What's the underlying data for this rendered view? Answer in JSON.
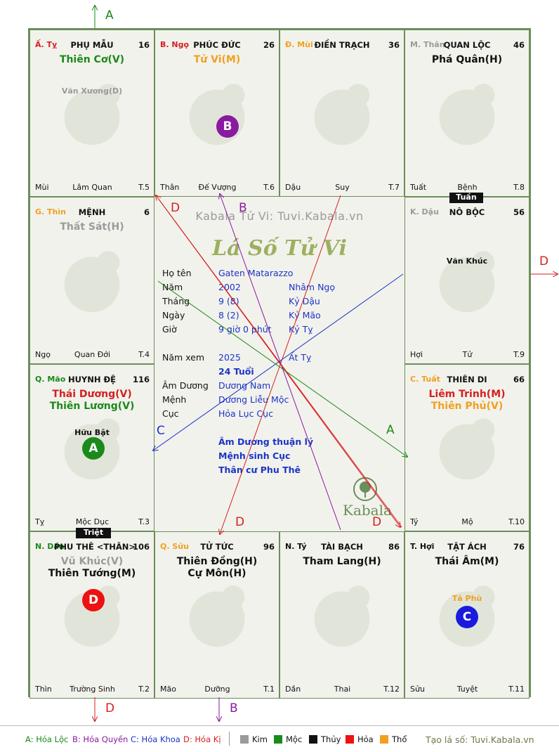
{
  "cells": [
    {
      "id": "ty",
      "tag": "Ấ. Tỵ",
      "tag_color": "#d42020",
      "name": "PHỤ MẪU",
      "num": "16",
      "major": [
        "Thiên Cơ(V)"
      ],
      "major_colors": [
        "#1a8a1a"
      ],
      "minor": [
        "Văn Xương(D)"
      ],
      "minor_colors": [
        "#9a9a9a"
      ],
      "minor_top": 80,
      "bottom_left": "Mùi",
      "bottom_center": "Lâm Quan",
      "bottom_right": "T.5"
    },
    {
      "id": "ngo",
      "tag": "B. Ngọ",
      "tag_color": "#d42020",
      "name": "PHÚC ĐỨC",
      "num": "26",
      "major": [
        "Tử Vi(M)"
      ],
      "major_colors": [
        "#f0a020"
      ],
      "minor": [],
      "minor_colors": [],
      "minor_top": 80,
      "bottom_left": "Thân",
      "bottom_center": "Đế Vượng",
      "bottom_right": "T.6"
    },
    {
      "id": "mui",
      "tag": "Đ. Mùi",
      "tag_color": "#f0a020",
      "name": "ĐIỀN TRẠCH",
      "num": "36",
      "major": [],
      "major_colors": [],
      "minor": [],
      "minor_colors": [],
      "minor_top": 80,
      "bottom_left": "Dậu",
      "bottom_center": "Suy",
      "bottom_right": "T.7"
    },
    {
      "id": "than",
      "tag": "M. Thân",
      "tag_color": "#9a9a9a",
      "name": "QUAN LỘC",
      "num": "46",
      "major": [
        "Phá Quân(H)"
      ],
      "major_colors": [
        "#111111"
      ],
      "minor": [],
      "minor_colors": [],
      "minor_top": 80,
      "bottom_left": "Tuất",
      "bottom_center": "Bệnh",
      "bottom_right": "T.8"
    },
    {
      "id": "thin",
      "tag": "G. Thìn",
      "tag_color": "#f0a020",
      "name": "MỆNH",
      "num": "6",
      "major": [
        "Thất Sát(H)"
      ],
      "major_colors": [
        "#9a9a9a"
      ],
      "minor": [],
      "minor_colors": [],
      "minor_top": 80,
      "bottom_left": "Ngọ",
      "bottom_center": "Quan Đới",
      "bottom_right": "T.4"
    },
    {
      "id": "dau",
      "tag": "K. Dậu",
      "tag_color": "#9a9a9a",
      "name": "NÔ BỘC",
      "num": "56",
      "major": [],
      "major_colors": [],
      "minor": [
        "Văn Khúc"
      ],
      "minor_colors": [
        "#111111"
      ],
      "minor_top": 84,
      "bottom_left": "Hợi",
      "bottom_center": "Tử",
      "bottom_right": "T.9"
    },
    {
      "id": "mao",
      "tag": "Q. Mão",
      "tag_color": "#1a8a1a",
      "name": "HUYNH ĐỆ",
      "num": "116",
      "major": [
        "Thái Dương(V)",
        "Thiên Lương(V)"
      ],
      "major_colors": [
        "#d42020",
        "#1a8a1a"
      ],
      "minor": [
        "Hữu Bật"
      ],
      "minor_colors": [
        "#111111"
      ],
      "minor_top": 82,
      "bottom_left": "Tỵ",
      "bottom_center": "Mộc Dục",
      "bottom_right": "T.3"
    },
    {
      "id": "tuat",
      "tag": "C. Tuất",
      "tag_color": "#f0a020",
      "name": "THIÊN DI",
      "num": "66",
      "major": [
        "Liêm Trinh(M)",
        "Thiên Phủ(V)"
      ],
      "major_colors": [
        "#d42020",
        "#f0a020"
      ],
      "minor": [],
      "minor_colors": [],
      "minor_top": 82,
      "bottom_left": "Tý",
      "bottom_center": "Mộ",
      "bottom_right": "T.10"
    },
    {
      "id": "dan",
      "tag": "N. Dần",
      "tag_color": "#1a8a1a",
      "name": "PHU THÊ <THÂN>",
      "num": "106",
      "major": [
        "Vũ Khúc(V)",
        "Thiên Tướng(M)"
      ],
      "major_colors": [
        "#9a9a9a",
        "#111111"
      ],
      "minor": [],
      "minor_colors": [],
      "minor_top": 82,
      "bottom_left": "Thìn",
      "bottom_center": "Trường Sinh",
      "bottom_right": "T.2"
    },
    {
      "id": "suu",
      "tag": "Q. Sửu",
      "tag_color": "#f0a020",
      "name": "TỬ TỨC",
      "num": "96",
      "major": [
        "Thiên Đồng(H)",
        "Cự Môn(H)"
      ],
      "major_colors": [
        "#111111",
        "#111111"
      ],
      "minor": [],
      "minor_colors": [],
      "minor_top": 82,
      "bottom_left": "Mão",
      "bottom_center": "Dưỡng",
      "bottom_right": "T.1"
    },
    {
      "id": "ty2",
      "tag": "N. Tý",
      "tag_color": "#111111",
      "name": "TÀI BẠCH",
      "num": "86",
      "major": [
        "Tham Lang(H)"
      ],
      "major_colors": [
        "#111111"
      ],
      "minor": [],
      "minor_colors": [],
      "minor_top": 82,
      "bottom_left": "Dần",
      "bottom_center": "Thai",
      "bottom_right": "T.12"
    },
    {
      "id": "hoi",
      "tag": "T. Hợi",
      "tag_color": "#111111",
      "name": "TẬT ÁCH",
      "num": "76",
      "major": [
        "Thái Âm(M)"
      ],
      "major_colors": [
        "#111111"
      ],
      "minor": [
        "Tả Phù"
      ],
      "minor_colors": [
        "#f0a020"
      ],
      "minor_top": 88,
      "bottom_left": "Sửu",
      "bottom_center": "Tuyệt",
      "bottom_right": "T.11"
    }
  ],
  "badges": {
    "b": "B",
    "a": "A",
    "d": "D",
    "c": "C"
  },
  "stamps": {
    "tuan": "Tuần",
    "triet": "Triệt"
  },
  "center": {
    "watermark": "Kabala Tử Vi: Tuvi.Kabala.vn",
    "title": "Lá Số Tử Vi",
    "rows": [
      {
        "label": "Họ tên",
        "v1": "Gaten Matarazzo",
        "v2": ""
      },
      {
        "label": "Năm",
        "v1": "2002",
        "v2": "Nhâm Ngọ"
      },
      {
        "label": "Tháng",
        "v1": "9  (8)",
        "v2": "Kỷ Dậu"
      },
      {
        "label": "Ngày",
        "v1": "8  (2)",
        "v2": "Kỷ Mão"
      },
      {
        "label": "Giờ",
        "v1": "9 giờ 0 phút",
        "v2": "Kỷ Tỵ"
      },
      {
        "label": "Năm xem",
        "v1": "2025",
        "v2": "Ất Tỵ"
      },
      {
        "label": "",
        "v1": "24 Tuổi",
        "v2": ""
      },
      {
        "label": "Âm Dương",
        "v1": "Dương Nam",
        "v2": ""
      },
      {
        "label": "Mệnh",
        "v1": "Dương Liễu Mộc",
        "v2": ""
      },
      {
        "label": "Cục",
        "v1": "Hỏa Lục Cục",
        "v2": ""
      }
    ],
    "notes": [
      "Âm Dương thuận lý",
      "Mệnh sinh Cục",
      "Thân cư Phu Thê"
    ],
    "logo_text": "Kabala"
  },
  "arrow_labels": {
    "top_a": "A",
    "right_d": "D",
    "bottom_d": "D",
    "bottom_b": "B",
    "center_d1": "D",
    "center_b": "B",
    "center_c": "C",
    "center_a": "A",
    "center_d2": "D",
    "center_d3": "D"
  },
  "legend": {
    "a": "A: Hóa Lộc",
    "b": "B: Hóa Quyền",
    "c": "C: Hóa Khoa",
    "d": "D: Hóa Kị",
    "kim": "Kim",
    "moc": "Mộc",
    "thuy": "Thủy",
    "hoa": "Hỏa",
    "tho": "Thổ",
    "site": "Tạo lá số: Tuvi.Kabala.vn",
    "colors": {
      "a": "#1a8a1a",
      "b": "#8a1aa0",
      "c": "#1a34c8",
      "d": "#d42020",
      "kim": "#9a9a9a",
      "moc": "#1a8a1a",
      "thuy": "#111111",
      "hoa": "#ee1111",
      "tho": "#f0a020"
    }
  }
}
